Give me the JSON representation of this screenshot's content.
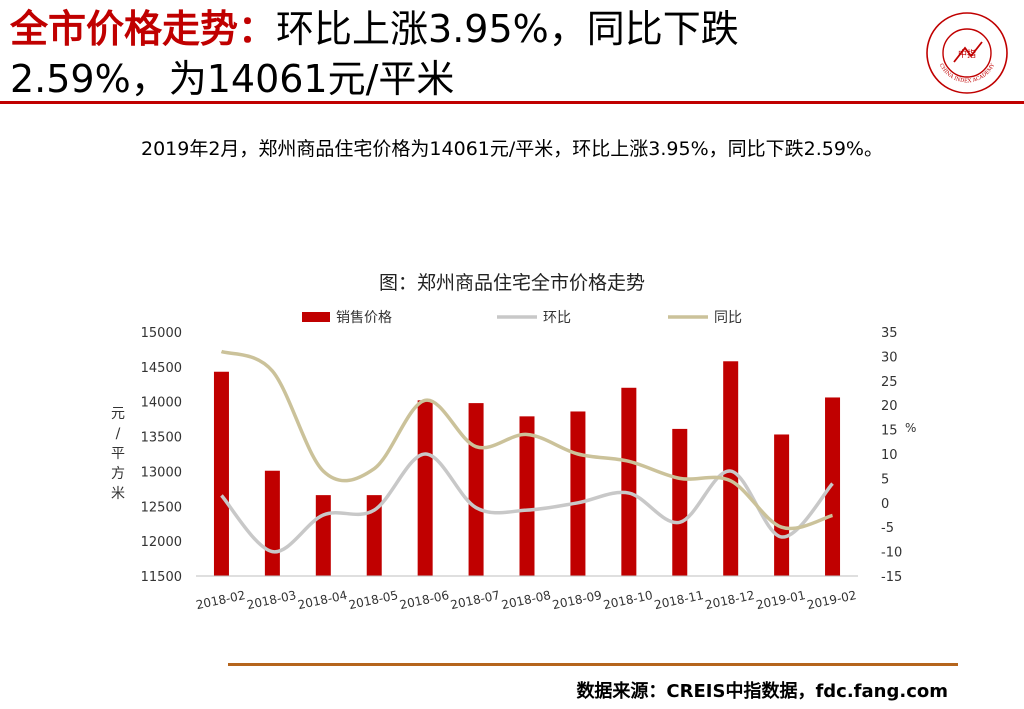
{
  "header": {
    "title_highlight": "全市价格走势：",
    "title_line1_rest": "环比上涨3.95%，同比下跌",
    "title_line2": "2.59%，为14061元/平米"
  },
  "logo": {
    "text": "中指",
    "arc_text": "CHINA INDEX ACADEMY",
    "colors": {
      "ring": "#c00000"
    }
  },
  "summary": "2019年2月，郑州商品住宅价格为14061元/平米，环比上涨3.95%，同比下跌2.59%。",
  "chart_data": {
    "type": "bar",
    "title": "图：郑州商品住宅全市价格走势",
    "categories": [
      "2018-02",
      "2018-03",
      "2018-04",
      "2018-05",
      "2018-06",
      "2018-07",
      "2018-08",
      "2018-09",
      "2018-10",
      "2018-11",
      "2018-12",
      "2019-01",
      "2019-02"
    ],
    "series": [
      {
        "name": "销售价格",
        "type": "bar",
        "axis": "left",
        "color": "#c00000",
        "values": [
          14430,
          13010,
          12660,
          12660,
          14020,
          13980,
          13790,
          13860,
          14200,
          13610,
          14580,
          13530,
          14061
        ]
      },
      {
        "name": "环比",
        "type": "line",
        "axis": "right",
        "color": "#c8c8c8",
        "values": [
          1.5,
          -10,
          -2.5,
          -1.5,
          10,
          -1,
          -1.5,
          0,
          2,
          -4,
          6.5,
          -7,
          3.95
        ]
      },
      {
        "name": "同比",
        "type": "line",
        "axis": "right",
        "color": "#cbc29a",
        "values": [
          31,
          27,
          6.5,
          7,
          21,
          11.5,
          14,
          10,
          8.5,
          5,
          4.5,
          -5,
          -2.59
        ]
      }
    ],
    "ylabel": "元/平方米",
    "ylabel_right": "%",
    "ylim": [
      11500,
      15000
    ],
    "yticks": [
      11500,
      12000,
      12500,
      13000,
      13500,
      14000,
      14500,
      15000
    ],
    "ylim_right": [
      -15,
      35
    ],
    "yticks_right": [
      -15,
      -10,
      -5,
      0,
      5,
      10,
      15,
      20,
      25,
      30,
      35
    ],
    "grid": false,
    "legend": "top"
  },
  "footer": {
    "source": "数据来源：CREIS中指数据，fdc.fang.com"
  }
}
